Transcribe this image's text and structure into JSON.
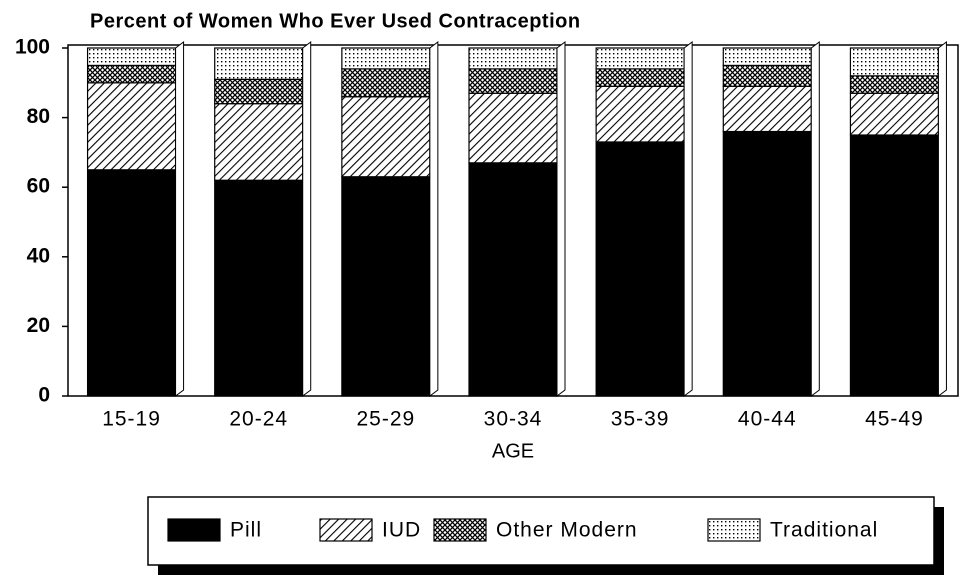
{
  "chart_data": {
    "type": "stacked_bar",
    "title": "Percent of Women Who Ever Used Contraception",
    "x_label": "AGE",
    "categories": [
      "15-19",
      "20-24",
      "25-29",
      "30-34",
      "35-39",
      "40-44",
      "45-49"
    ],
    "series": [
      {
        "name": "Pill",
        "color": "#000000",
        "pattern": "solid",
        "values": [
          65,
          62,
          63,
          67,
          73,
          76,
          75
        ]
      },
      {
        "name": "IUD",
        "color": "#000000",
        "pattern": "diagonal",
        "values": [
          25,
          22,
          23,
          20,
          16,
          13,
          12
        ]
      },
      {
        "name": "Other Modern",
        "color": "#000000",
        "pattern": "crosshatch",
        "values": [
          5,
          7,
          8,
          7,
          5,
          6,
          5
        ]
      },
      {
        "name": "Traditional",
        "color": "#000000",
        "pattern": "dots",
        "values": [
          5,
          9,
          6,
          6,
          6,
          5,
          8
        ]
      }
    ],
    "ylim": [
      0,
      100
    ],
    "yticks": [
      0,
      20,
      40,
      60,
      80,
      100
    ],
    "legend": "bottom"
  }
}
